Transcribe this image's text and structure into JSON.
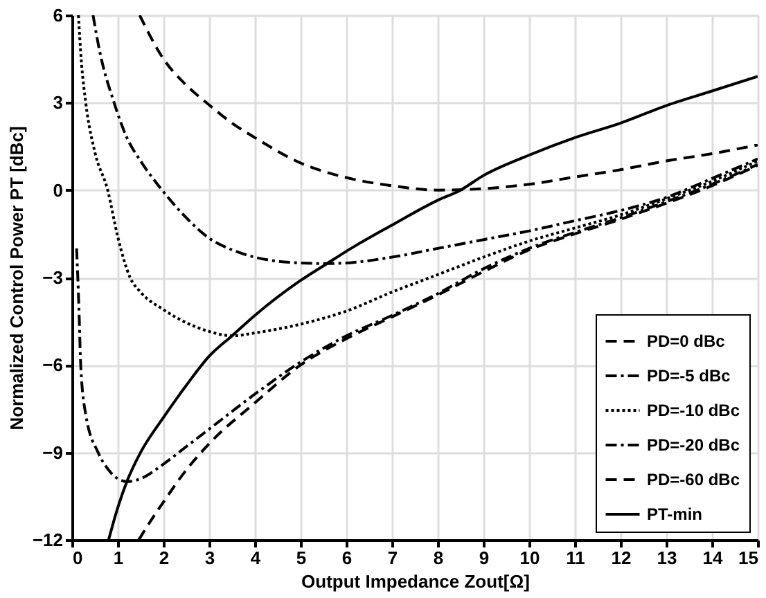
{
  "chart_data": {
    "type": "line",
    "xlabel": "Output Impedance Zout[Ω]",
    "ylabel": "Normalized Control Power PT [dBc]",
    "xlim": [
      0,
      15
    ],
    "xticks": [
      0,
      1,
      2,
      3,
      4,
      5,
      6,
      7,
      8,
      9,
      10,
      11,
      12,
      13,
      14,
      15
    ],
    "ylim": [
      -12,
      6
    ],
    "yticks": [
      -12,
      -9,
      -6,
      -3,
      0,
      3,
      6
    ],
    "grid": true,
    "legend": "bottom right",
    "series": [
      {
        "name": "PD=0 dBc",
        "color": "#000000",
        "line_style": "dashed",
        "x": [
          1.48,
          2,
          2.5,
          2.94,
          3.5,
          4,
          5,
          6,
          7,
          8,
          9,
          10,
          11,
          12,
          13,
          14,
          15
        ],
        "values": [
          6,
          4.5,
          3.6,
          3,
          2.3,
          1.8,
          0.93,
          0.43,
          0.15,
          0,
          0.05,
          0.2,
          0.45,
          0.7,
          1.0,
          1.25,
          1.55
        ]
      },
      {
        "name": "PD=-5 dBc",
        "color": "#000000",
        "line_style": "dashdot",
        "x": [
          0.46,
          0.6,
          0.92,
          1.2,
          1.5,
          1.97,
          2.5,
          3,
          3.5,
          4,
          5,
          5.6,
          6,
          7,
          8,
          9,
          10,
          11,
          12,
          13,
          14,
          15
        ],
        "values": [
          6,
          4.8,
          3,
          1.8,
          1.0,
          0,
          -0.95,
          -1.65,
          -2.05,
          -2.3,
          -2.5,
          -2.52,
          -2.5,
          -2.3,
          -2.0,
          -1.7,
          -1.4,
          -1.05,
          -0.7,
          -0.25,
          0.4,
          1.07
        ]
      },
      {
        "name": "PD=-10 dBc",
        "color": "#000000",
        "line_style": "dotted",
        "x": [
          0.14,
          0.2,
          0.3,
          0.5,
          0.78,
          1,
          1.27,
          1.5,
          2,
          2.5,
          3,
          3.5,
          4,
          5,
          6,
          7,
          8,
          9,
          10,
          11,
          12,
          13,
          14,
          15
        ],
        "values": [
          6,
          4.5,
          3,
          1.3,
          0,
          -1.6,
          -3,
          -3.5,
          -4.1,
          -4.55,
          -4.85,
          -5.0,
          -4.9,
          -4.6,
          -4.15,
          -3.5,
          -2.9,
          -2.3,
          -1.75,
          -1.3,
          -0.85,
          -0.3,
          0.3,
          1.0
        ]
      },
      {
        "name": "PD=-20 dBc",
        "color": "#000000",
        "line_style": "dashdot",
        "x": [
          0.1,
          0.15,
          0.19,
          0.3,
          0.57,
          0.8,
          1,
          1.22,
          1.5,
          2,
          2.5,
          3,
          4,
          5,
          6,
          7,
          8,
          9,
          10,
          11,
          12,
          13,
          14,
          15
        ],
        "values": [
          -2,
          -4,
          -6,
          -7.7,
          -9,
          -9.6,
          -9.9,
          -10,
          -9.9,
          -9.4,
          -8.8,
          -8.2,
          -7.0,
          -5.9,
          -5.0,
          -4.3,
          -3.55,
          -2.7,
          -2.0,
          -1.45,
          -0.95,
          -0.4,
          0.2,
          0.88
        ]
      },
      {
        "name": "PD=-60 dBc",
        "color": "#000000",
        "line_style": "dashed",
        "x": [
          1.46,
          1.7,
          2,
          2.5,
          3,
          4,
          5,
          6,
          7,
          8,
          9,
          10,
          11,
          12,
          13,
          14,
          15
        ],
        "values": [
          -12,
          -11.4,
          -10.7,
          -9.6,
          -8.7,
          -7.3,
          -6.0,
          -5.1,
          -4.35,
          -3.6,
          -2.8,
          -2.05,
          -1.5,
          -1.0,
          -0.45,
          0.15,
          0.85
        ]
      },
      {
        "name": "PT-min",
        "color": "#000000",
        "line_style": "solid",
        "x": [
          0.8,
          1,
          1.2,
          1.5,
          2,
          2.5,
          3,
          3.5,
          4,
          5,
          5.6,
          6,
          7,
          8,
          8.5,
          9,
          10,
          11,
          12,
          13,
          14,
          15
        ],
        "values": [
          -12,
          -10.9,
          -10,
          -9.0,
          -7.8,
          -6.7,
          -5.7,
          -5.0,
          -4.3,
          -3.1,
          -2.5,
          -2.1,
          -1.2,
          -0.35,
          0,
          0.5,
          1.2,
          1.8,
          2.3,
          2.9,
          3.4,
          3.9
        ]
      }
    ]
  }
}
